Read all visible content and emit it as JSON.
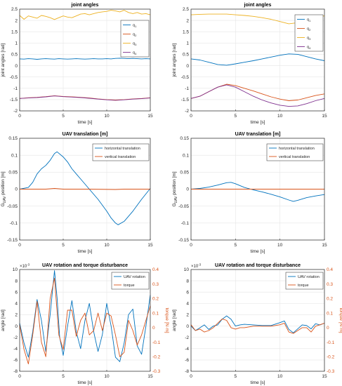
{
  "colors": {
    "blue": "#0072BD",
    "orange": "#D95319",
    "yellow": "#EDB120",
    "purple": "#7E2F8E",
    "grid": "#e6e6e6",
    "axis": "#262626"
  },
  "chart_data": [
    {
      "id": "p1",
      "type": "line",
      "title": "joint angles",
      "xlabel": "time [s]",
      "ylabel": "joint angles [rad]",
      "xlim": [
        0,
        15
      ],
      "ylim": [
        -2,
        2.5
      ],
      "xticks": [
        0,
        5,
        10,
        15
      ],
      "xtick_labels": [
        "0",
        "5",
        "10",
        "15"
      ],
      "yticks": [
        -2,
        -1.5,
        -1,
        -0.5,
        0,
        0.5,
        1,
        1.5,
        2,
        2.5
      ],
      "ytick_labels": [
        "-2",
        "-1.5",
        "-1",
        "-0.5",
        "0",
        "0.5",
        "1",
        "1.5",
        "2",
        "2.5"
      ],
      "grid": true,
      "legend": "right",
      "series": [
        {
          "name": "q1",
          "sub": "1",
          "color": "#0072BD",
          "x": [
            0,
            0.5,
            1,
            1.5,
            2,
            2.5,
            3,
            3.5,
            4,
            4.5,
            5,
            5.5,
            6,
            6.5,
            7,
            7.5,
            8,
            8.5,
            9,
            9.5,
            10,
            10.5,
            11,
            11.5,
            12,
            12.5,
            13,
            13.5,
            14,
            14.5,
            15
          ],
          "y": [
            0.3,
            0.29,
            0.31,
            0.3,
            0.28,
            0.3,
            0.31,
            0.3,
            0.29,
            0.31,
            0.3,
            0.29,
            0.3,
            0.31,
            0.3,
            0.29,
            0.3,
            0.31,
            0.3,
            0.3,
            0.31,
            0.3,
            0.32,
            0.33,
            0.32,
            0.31,
            0.32,
            0.31,
            0.3,
            0.31,
            0.3
          ]
        },
        {
          "name": "q2",
          "sub": "2",
          "color": "#D95319",
          "x": [
            0,
            1,
            2,
            3,
            4,
            5,
            6,
            7,
            8,
            9,
            10,
            11,
            12,
            13,
            14,
            15
          ],
          "y": [
            -1.45,
            -1.42,
            -1.4,
            -1.37,
            -1.33,
            -1.36,
            -1.38,
            -1.4,
            -1.43,
            -1.47,
            -1.5,
            -1.52,
            -1.5,
            -1.47,
            -1.45,
            -1.42
          ]
        },
        {
          "name": "q3",
          "sub": "3",
          "color": "#EDB120",
          "x": [
            0,
            0.5,
            1,
            1.5,
            2,
            2.5,
            3,
            3.5,
            4,
            4.5,
            5,
            5.5,
            6,
            6.5,
            7,
            7.5,
            8,
            8.5,
            9,
            9.5,
            10,
            10.5,
            11,
            11.5,
            12,
            12.5,
            13,
            13.5,
            14,
            14.5,
            15
          ],
          "y": [
            2.22,
            2.05,
            2.2,
            2.15,
            2.1,
            2.22,
            2.18,
            2.12,
            2.04,
            2.12,
            2.2,
            2.15,
            2.12,
            2.2,
            2.28,
            2.3,
            2.25,
            2.3,
            2.35,
            2.38,
            2.4,
            2.45,
            2.42,
            2.38,
            2.45,
            2.35,
            2.3,
            2.35,
            2.28,
            2.3,
            2.25
          ]
        },
        {
          "name": "q4",
          "sub": "4",
          "color": "#7E2F8E",
          "x": [
            0,
            1,
            2,
            3,
            4,
            5,
            6,
            7,
            8,
            9,
            10,
            11,
            12,
            13,
            14,
            15
          ],
          "y": [
            -1.45,
            -1.43,
            -1.41,
            -1.38,
            -1.34,
            -1.37,
            -1.39,
            -1.41,
            -1.44,
            -1.48,
            -1.51,
            -1.53,
            -1.51,
            -1.48,
            -1.46,
            -1.43
          ]
        }
      ]
    },
    {
      "id": "p2",
      "type": "line",
      "title": "joint angles",
      "xlabel": "time [s]",
      "ylabel": "joint angles [rad]",
      "xlim": [
        0,
        15
      ],
      "ylim": [
        -2,
        2.5
      ],
      "xticks": [
        0,
        5,
        10,
        15
      ],
      "xtick_labels": [
        "0",
        "5",
        "10",
        "15"
      ],
      "yticks": [
        -2,
        -1.5,
        -1,
        -0.5,
        0,
        0.5,
        1,
        1.5,
        2,
        2.5
      ],
      "ytick_labels": [
        "-2",
        "-1.5",
        "-1",
        "-0.5",
        "0",
        "0.5",
        "1",
        "1.5",
        "2",
        "2.5"
      ],
      "grid": true,
      "legend": "top-right",
      "series": [
        {
          "name": "q1",
          "sub": "1",
          "color": "#0072BD",
          "x": [
            0,
            1,
            2,
            3,
            4,
            5,
            6,
            7,
            8,
            9,
            10,
            11,
            12,
            13,
            14,
            15
          ],
          "y": [
            0.3,
            0.25,
            0.15,
            0.05,
            0.02,
            0.08,
            0.15,
            0.22,
            0.3,
            0.38,
            0.46,
            0.52,
            0.5,
            0.4,
            0.3,
            0.22
          ]
        },
        {
          "name": "q2",
          "sub": "2",
          "color": "#D95319",
          "x": [
            0,
            1,
            2,
            3,
            4,
            5,
            6,
            7,
            8,
            9,
            10,
            11,
            12,
            13,
            14,
            15
          ],
          "y": [
            -1.45,
            -1.35,
            -1.15,
            -0.95,
            -0.82,
            -0.88,
            -1.0,
            -1.12,
            -1.25,
            -1.38,
            -1.48,
            -1.55,
            -1.52,
            -1.42,
            -1.32,
            -1.25
          ]
        },
        {
          "name": "q3",
          "sub": "3",
          "color": "#EDB120",
          "x": [
            0,
            1,
            2,
            3,
            4,
            5,
            6,
            7,
            8,
            9,
            10,
            11,
            12,
            13,
            14,
            15
          ],
          "y": [
            2.25,
            2.27,
            2.28,
            2.28,
            2.28,
            2.25,
            2.22,
            2.18,
            2.12,
            2.05,
            1.95,
            1.85,
            1.9,
            2.05,
            2.15,
            2.2
          ]
        },
        {
          "name": "q4",
          "sub": "4",
          "color": "#7E2F8E",
          "x": [
            0,
            1,
            2,
            3,
            4,
            5,
            6,
            7,
            8,
            9,
            10,
            11,
            12,
            13,
            14,
            15
          ],
          "y": [
            -1.45,
            -1.35,
            -1.15,
            -0.95,
            -0.85,
            -0.95,
            -1.15,
            -1.35,
            -1.52,
            -1.65,
            -1.75,
            -1.8,
            -1.78,
            -1.68,
            -1.55,
            -1.45
          ]
        }
      ]
    },
    {
      "id": "p3",
      "type": "line",
      "title": "UAV translation [m]",
      "xlabel": "time [s]",
      "ylabel": "G",
      "ylabel_sub": "UAV",
      "ylabel_rest": " position [m]",
      "xlim": [
        0,
        15
      ],
      "ylim": [
        -0.15,
        0.15
      ],
      "xticks": [
        0,
        5,
        10,
        15
      ],
      "xtick_labels": [
        "0",
        "5",
        "10",
        "15"
      ],
      "yticks": [
        -0.15,
        -0.1,
        -0.05,
        0,
        0.05,
        0.1,
        0.15
      ],
      "ytick_labels": [
        "-0.15",
        "-0.1",
        "-0.05",
        "0",
        "0.05",
        "0.1",
        "0.15"
      ],
      "grid": true,
      "legend": "top-right",
      "series": [
        {
          "name": "horizontal translation",
          "color": "#0072BD",
          "x": [
            0,
            1,
            1.5,
            2,
            2.5,
            3,
            3.5,
            4,
            4.3,
            5,
            5.5,
            6,
            6.5,
            7,
            8,
            9,
            10,
            10.5,
            11,
            11.3,
            12,
            13,
            14,
            15
          ],
          "y": [
            0,
            0.005,
            0.02,
            0.045,
            0.06,
            0.07,
            0.085,
            0.105,
            0.11,
            0.095,
            0.08,
            0.06,
            0.045,
            0.03,
            0.0,
            -0.03,
            -0.065,
            -0.085,
            -0.1,
            -0.105,
            -0.095,
            -0.065,
            -0.03,
            0.002
          ]
        },
        {
          "name": "vertical translation",
          "color": "#D95319",
          "x": [
            0,
            3,
            4,
            5,
            8,
            11,
            12,
            15
          ],
          "y": [
            0,
            0,
            0.002,
            0,
            0,
            -0.001,
            0,
            0
          ]
        }
      ]
    },
    {
      "id": "p4",
      "type": "line",
      "title": "UAV translation [m]",
      "xlabel": "time [s]",
      "ylabel": "G",
      "ylabel_sub": "UAV",
      "ylabel_rest": " position [m]",
      "xlim": [
        0,
        15
      ],
      "ylim": [
        -0.15,
        0.15
      ],
      "xticks": [
        0,
        5,
        10,
        15
      ],
      "xtick_labels": [
        "0",
        "5",
        "10",
        "15"
      ],
      "yticks": [
        -0.15,
        -0.1,
        -0.05,
        0,
        0.05,
        0.1,
        0.15
      ],
      "ytick_labels": [
        "-0.15",
        "-0.1",
        "-0.05",
        "0",
        "0.05",
        "0.1",
        "0.15"
      ],
      "grid": true,
      "legend": "top-right",
      "series": [
        {
          "name": "horizontal translation",
          "color": "#0072BD",
          "x": [
            0,
            1,
            2,
            3,
            4,
            4.5,
            5,
            6,
            7,
            8,
            9,
            10,
            11,
            11.5,
            12,
            13,
            14,
            15
          ],
          "y": [
            0,
            0.002,
            0.006,
            0.012,
            0.019,
            0.02,
            0.016,
            0.005,
            -0.002,
            -0.008,
            -0.015,
            -0.023,
            -0.032,
            -0.036,
            -0.033,
            -0.025,
            -0.02,
            -0.016
          ]
        },
        {
          "name": "vertical translation",
          "color": "#D95319",
          "x": [
            0,
            15
          ],
          "y": [
            0,
            0
          ]
        }
      ]
    },
    {
      "id": "p5",
      "type": "line",
      "title": "UAV rotation and torque disturbance",
      "xlabel": "time [s]",
      "ylabel": "angle [rad]",
      "ylabel_right": "torque [N·m]",
      "yexp": "×10",
      "yexp_sup": "-3",
      "xlim": [
        0,
        15
      ],
      "ylim": [
        -8,
        10
      ],
      "y2lim": [
        -0.3,
        0.4
      ],
      "xticks": [
        0,
        5,
        10,
        15
      ],
      "xtick_labels": [
        "0",
        "5",
        "10",
        "15"
      ],
      "yticks": [
        -8,
        -6,
        -4,
        -2,
        0,
        2,
        4,
        6,
        8,
        10
      ],
      "ytick_labels": [
        "-8",
        "-6",
        "-4",
        "-2",
        "0",
        "2",
        "4",
        "6",
        "8",
        "10"
      ],
      "y2ticks": [
        -0.3,
        -0.2,
        -0.1,
        0,
        0.1,
        0.2,
        0.3,
        0.4
      ],
      "y2tick_labels": [
        "-0.3",
        "-0.2",
        "-0.1",
        "0",
        "0.1",
        "0.2",
        "0.3",
        "0.4"
      ],
      "grid": true,
      "legend": "top-right",
      "series": [
        {
          "name": "UAV rotation",
          "color": "#0072BD",
          "axis": "left",
          "x": [
            0,
            0.5,
            1,
            1.5,
            2,
            2.5,
            3,
            3.5,
            4,
            4.3,
            4.6,
            5,
            5.5,
            6,
            6.5,
            7,
            7.5,
            8,
            8.5,
            9,
            9.5,
            10,
            10.5,
            11,
            11.5,
            12,
            12.5,
            13,
            13.5,
            14,
            14.5,
            15
          ],
          "y": [
            0.5,
            -3,
            -5.5,
            -1,
            4.7,
            1,
            -4.5,
            2,
            9.8,
            5,
            -2,
            -5.2,
            0,
            4.5,
            -1,
            -4,
            1,
            4,
            -1,
            -4.5,
            -1.5,
            4,
            0,
            -5.5,
            -6.3,
            -3,
            2,
            3,
            -3.5,
            -5,
            0,
            5.5
          ]
        },
        {
          "name": "torque",
          "color": "#D95319",
          "axis": "right",
          "x": [
            0,
            0.5,
            1,
            1.5,
            2,
            2.5,
            3,
            3.5,
            4,
            4.5,
            5,
            5.5,
            6,
            6.5,
            7,
            7.5,
            8,
            8.5,
            9,
            9.5,
            10,
            10.5,
            11,
            11.5,
            12,
            12.5,
            13,
            13.5,
            14,
            14.5,
            15
          ],
          "y": [
            0.02,
            -0.15,
            -0.25,
            -0.05,
            0.18,
            -0.1,
            -0.2,
            0.2,
            0.34,
            -0.05,
            -0.15,
            0.12,
            0.12,
            -0.06,
            0.05,
            0.1,
            -0.05,
            -0.02,
            0.1,
            -0.02,
            0.1,
            0.08,
            -0.05,
            -0.2,
            -0.17,
            0.05,
            -0.02,
            -0.12,
            -0.05,
            0.05,
            0.15
          ]
        }
      ]
    },
    {
      "id": "p6",
      "type": "line",
      "title": "UAV rotation and torque disturbance",
      "xlabel": "time [s]",
      "ylabel": "angle [rad]",
      "ylabel_right": "torque [N·m]",
      "yexp": "×10",
      "yexp_sup": "-3",
      "xlim": [
        0,
        15
      ],
      "ylim": [
        -8,
        10
      ],
      "y2lim": [
        -0.3,
        0.4
      ],
      "xticks": [
        0,
        5,
        10,
        15
      ],
      "xtick_labels": [
        "0",
        "5",
        "10",
        "15"
      ],
      "yticks": [
        -8,
        -6,
        -4,
        -2,
        0,
        2,
        4,
        6,
        8,
        10
      ],
      "ytick_labels": [
        "-8",
        "-6",
        "-4",
        "-2",
        "0",
        "2",
        "4",
        "6",
        "8",
        "10"
      ],
      "y2ticks": [
        -0.3,
        -0.2,
        -0.1,
        0,
        0.1,
        0.2,
        0.3,
        0.4
      ],
      "y2tick_labels": [
        "-0.3",
        "-0.2",
        "-0.1",
        "0",
        "0.1",
        "0.2",
        "0.3",
        "0.4"
      ],
      "grid": true,
      "legend": "top-right",
      "series": [
        {
          "name": "UAV rotation",
          "color": "#0072BD",
          "axis": "left",
          "x": [
            0,
            0.5,
            1,
            1.5,
            2,
            2.5,
            3,
            3.5,
            4,
            4.5,
            5,
            5.5,
            6,
            7,
            8,
            9,
            10,
            10.5,
            11,
            11.5,
            12,
            12.5,
            13,
            13.5,
            14,
            14.5,
            15
          ],
          "y": [
            0,
            -0.8,
            -0.3,
            0.2,
            -0.6,
            0,
            0.2,
            1.2,
            1.8,
            1.2,
            0,
            0.2,
            0.3,
            0.2,
            0.1,
            0.1,
            0.6,
            0.9,
            -0.6,
            -1.2,
            -0.5,
            0.2,
            0.1,
            -0.5,
            0.4,
            0.2,
            0.5
          ]
        },
        {
          "name": "torque",
          "color": "#D95319",
          "axis": "right",
          "x": [
            0,
            0.5,
            1,
            1.5,
            2,
            2.5,
            3,
            3.5,
            4,
            4.5,
            5,
            5.5,
            6,
            7,
            8,
            9,
            10,
            10.5,
            11,
            11.5,
            12,
            12.5,
            13,
            13.5,
            14,
            14.5,
            15
          ],
          "y": [
            0.02,
            -0.02,
            -0.01,
            -0.03,
            -0.02,
            0.0,
            0.03,
            0.06,
            0.05,
            0.0,
            -0.01,
            0.0,
            0.0,
            0.01,
            0.01,
            0.01,
            0.02,
            0.03,
            -0.03,
            -0.04,
            -0.02,
            0.0,
            0.0,
            -0.03,
            0.01,
            0.02,
            0.03
          ]
        }
      ]
    }
  ]
}
